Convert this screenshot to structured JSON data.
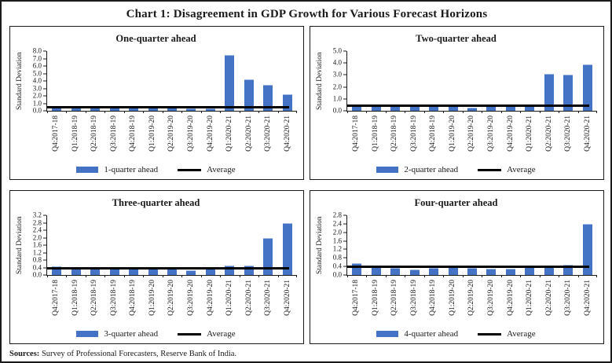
{
  "figure": {
    "title": "Chart 1: Disagreement in GDP Growth for Various Forecast Horizons",
    "sources_label": "Sources:",
    "sources_text": " Survey of Professional Forecasters, Reserve Bank of India."
  },
  "colors": {
    "bar": "#4472C4",
    "bar_top_edge": "#9DB7E3",
    "average_line": "#000000",
    "border": "#1a1a1a"
  },
  "chart_data": [
    {
      "type": "bar",
      "title": "One-quarter ahead",
      "ylabel": "Standard Deviation",
      "ylim": [
        0,
        8
      ],
      "yticks": [
        "8.0",
        "7.0",
        "6.0",
        "5.0",
        "4.0",
        "3.0",
        "2.0",
        "1.0",
        "0.0"
      ],
      "grid": false,
      "legend_position": "bottom",
      "categories": [
        "Q4:2017-18",
        "Q1:2018-19",
        "Q2:2018-19",
        "Q3:2018-19",
        "Q4:2018-19",
        "Q1:2019-20",
        "Q2:2019-20",
        "Q3:2019-20",
        "Q4:2019-20",
        "Q1:2020-21",
        "Q2:2020-21",
        "Q3:2020-21",
        "Q4:2020-21"
      ],
      "series": [
        {
          "name": "1-quarter ahead",
          "type": "bar",
          "values": [
            0.45,
            0.38,
            0.38,
            0.38,
            0.38,
            0.38,
            0.38,
            0.32,
            0.35,
            7.5,
            4.25,
            3.5,
            2.2
          ]
        },
        {
          "name": "Average",
          "type": "line",
          "value": 0.45
        }
      ]
    },
    {
      "type": "bar",
      "title": "Two-quarter ahead",
      "ylabel": "Standard Deviation",
      "ylim": [
        0,
        5
      ],
      "yticks": [
        "5.0",
        "4.0",
        "3.0",
        "2.0",
        "1.0",
        "0.0"
      ],
      "grid": false,
      "legend_position": "bottom",
      "categories": [
        "Q4:2017-18",
        "Q1:2018-19",
        "Q2:2018-19",
        "Q3:2018-19",
        "Q4:2018-19",
        "Q1:2019-20",
        "Q2:2019-20",
        "Q3:2019-20",
        "Q4:2019-20",
        "Q1:2020-21",
        "Q2:2020-21",
        "Q3:2020-21",
        "Q4:2020-21"
      ],
      "series": [
        {
          "name": "2-quarter ahead",
          "type": "bar",
          "values": [
            0.45,
            0.38,
            0.38,
            0.38,
            0.38,
            0.38,
            0.28,
            0.38,
            0.38,
            0.38,
            3.1,
            3.0,
            3.85
          ]
        },
        {
          "name": "Average",
          "type": "line",
          "value": 0.4
        }
      ]
    },
    {
      "type": "bar",
      "title": "Three-quarter ahead",
      "ylabel": "Standard Deviation",
      "ylim": [
        0,
        3.2
      ],
      "yticks": [
        "3.2",
        "2.8",
        "2.4",
        "2.0",
        "1.6",
        "1.2",
        "0.8",
        "0.4",
        "0.0"
      ],
      "grid": false,
      "legend_position": "bottom",
      "categories": [
        "Q4:2017-18",
        "Q1:2018-19",
        "Q2:2018-19",
        "Q3:2018-19",
        "Q4:2018-19",
        "Q1:2019-20",
        "Q2:2019-20",
        "Q3:2019-20",
        "Q4:2019-20",
        "Q1:2020-21",
        "Q2:2020-21",
        "Q3:2020-21",
        "Q4:2020-21"
      ],
      "series": [
        {
          "name": "3-quarter ahead",
          "type": "bar",
          "values": [
            0.48,
            0.35,
            0.35,
            0.35,
            0.33,
            0.35,
            0.35,
            0.25,
            0.33,
            0.5,
            0.5,
            2.0,
            2.8
          ]
        },
        {
          "name": "Average",
          "type": "line",
          "value": 0.36
        }
      ]
    },
    {
      "type": "bar",
      "title": "Four-quarter ahead",
      "ylabel": "Standard Deviation",
      "ylim": [
        0,
        2.8
      ],
      "yticks": [
        "2.8",
        "2.4",
        "2.0",
        "1.6",
        "1.2",
        "0.8",
        "0.4",
        "0.0"
      ],
      "grid": false,
      "legend_position": "bottom",
      "categories": [
        "Q4:2017-18",
        "Q1:2018-19",
        "Q2:2018-19",
        "Q3:2018-19",
        "Q4:2018-19",
        "Q1:2019-20",
        "Q2:2019-20",
        "Q3:2019-20",
        "Q4:2019-20",
        "Q1:2020-21",
        "Q2:2020-21",
        "Q3:2020-21",
        "Q4:2020-21"
      ],
      "series": [
        {
          "name": "4-quarter ahead",
          "type": "bar",
          "values": [
            0.55,
            0.4,
            0.33,
            0.26,
            0.32,
            0.43,
            0.33,
            0.28,
            0.3,
            0.38,
            0.43,
            0.47,
            2.4
          ]
        },
        {
          "name": "Average",
          "type": "line",
          "value": 0.4
        }
      ]
    }
  ]
}
